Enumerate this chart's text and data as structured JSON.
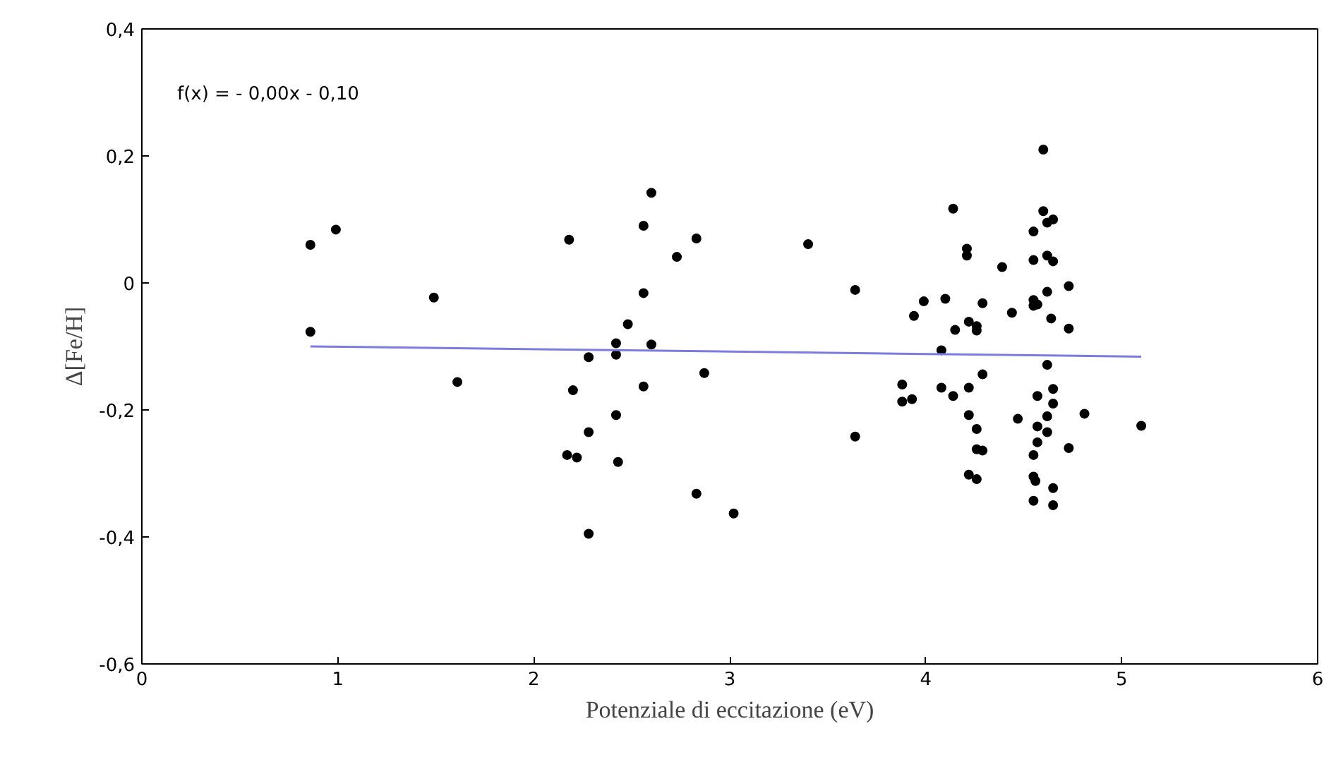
{
  "chart_data": {
    "type": "scatter",
    "xlabel": "Potenziale di eccitazione (eV)",
    "ylabel": "Δ[Fe/H]",
    "annotations": [
      "f(x) =   - 0,00x - 0,10"
    ],
    "xlim": [
      0,
      6
    ],
    "xticks": [
      0,
      1,
      2,
      3,
      4,
      5,
      6
    ],
    "ylim": [
      -0.6,
      0.4
    ],
    "yticks": [
      {
        "value": -0.6,
        "label": "-0,6"
      },
      {
        "value": -0.4,
        "label": "-0,4"
      },
      {
        "value": -0.2,
        "label": "-0,2"
      },
      {
        "value": 0,
        "label": "0"
      },
      {
        "value": 0.2,
        "label": "0,2"
      },
      {
        "value": 0.4,
        "label": "0,4"
      }
    ],
    "grid": false,
    "series": [
      {
        "marker": "circle",
        "color": "#000000",
        "x": [
          0.86,
          0.86,
          0.99,
          1.49,
          1.61,
          2.18,
          2.2,
          2.17,
          2.22,
          2.28,
          2.28,
          2.28,
          2.42,
          2.42,
          2.42,
          2.43,
          2.48,
          2.6,
          2.56,
          2.56,
          2.56,
          2.6,
          2.73,
          2.83,
          2.87,
          2.83,
          3.02,
          3.4,
          3.64,
          3.64,
          3.88,
          3.88,
          3.93,
          3.94,
          3.99,
          4.08,
          4.08,
          4.1,
          4.14,
          4.14,
          4.15,
          4.21,
          4.21,
          4.22,
          4.26,
          4.26,
          4.29,
          4.22,
          4.29,
          4.22,
          4.26,
          4.26,
          4.29,
          4.22,
          4.26,
          4.39,
          4.44,
          4.47,
          4.6,
          4.6,
          4.55,
          4.62,
          4.65,
          4.55,
          4.62,
          4.65,
          4.62,
          4.55,
          4.55,
          4.57,
          4.64,
          4.62,
          4.57,
          4.65,
          4.65,
          4.62,
          4.57,
          4.62,
          4.57,
          4.55,
          4.55,
          4.56,
          4.65,
          4.55,
          4.65,
          4.73,
          4.73,
          4.81,
          5.1,
          4.73
        ],
        "values": [
          0.06,
          -0.077,
          0.084,
          -0.023,
          -0.156,
          0.068,
          -0.169,
          -0.271,
          -0.275,
          -0.235,
          -0.117,
          -0.395,
          -0.208,
          -0.095,
          -0.113,
          -0.282,
          -0.065,
          0.142,
          0.09,
          -0.016,
          -0.163,
          -0.097,
          0.041,
          0.07,
          -0.142,
          -0.332,
          -0.363,
          0.061,
          -0.011,
          -0.242,
          -0.16,
          -0.187,
          -0.183,
          -0.052,
          -0.029,
          -0.165,
          -0.106,
          -0.025,
          -0.178,
          0.117,
          -0.074,
          0.054,
          0.043,
          -0.061,
          -0.068,
          -0.075,
          -0.032,
          -0.165,
          -0.144,
          -0.208,
          -0.23,
          -0.262,
          -0.264,
          -0.302,
          -0.309,
          0.025,
          -0.047,
          -0.214,
          0.21,
          0.113,
          0.081,
          0.095,
          0.1,
          0.036,
          0.043,
          0.034,
          -0.014,
          -0.027,
          -0.036,
          -0.034,
          -0.056,
          -0.129,
          -0.178,
          -0.167,
          -0.19,
          -0.21,
          -0.226,
          -0.235,
          -0.251,
          -0.271,
          -0.305,
          -0.312,
          -0.323,
          -0.343,
          -0.35,
          -0.005,
          -0.072,
          -0.206,
          -0.225,
          -0.26
        ]
      },
      {
        "type": "line",
        "marker": "none",
        "color": "#7b7be0",
        "x": [
          0.86,
          5.1
        ],
        "values": [
          -0.1,
          -0.116
        ]
      }
    ]
  }
}
